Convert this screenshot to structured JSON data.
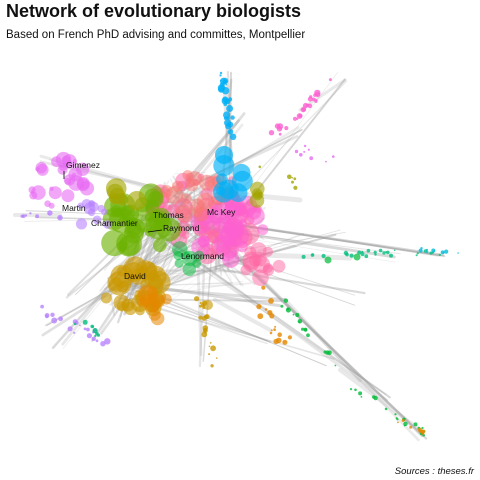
{
  "chart_data": {
    "type": "network",
    "title": "Network of evolutionary biologists",
    "subtitle": "Based on French PhD advising and committes, Montpellier",
    "caption": "Sources : theses.fr",
    "node_labels": [
      "Gimenez",
      "Martin",
      "Charmantier",
      "Thomas",
      "Raymond",
      "Mc Key",
      "Lenormand",
      "David"
    ],
    "communities": [
      {
        "color": "#f8766d"
      },
      {
        "color": "#e58700"
      },
      {
        "color": "#c99800"
      },
      {
        "color": "#a3a500"
      },
      {
        "color": "#6bb100"
      },
      {
        "color": "#00ba38"
      },
      {
        "color": "#00bf7d"
      },
      {
        "color": "#00c0af"
      },
      {
        "color": "#00bcd8"
      },
      {
        "color": "#00b0f6"
      },
      {
        "color": "#619cff"
      },
      {
        "color": "#b983ff"
      },
      {
        "color": "#e76bf3"
      },
      {
        "color": "#fd61d1"
      },
      {
        "color": "#ff67a4"
      }
    ],
    "edge_color": "#999999",
    "legend": "none"
  }
}
